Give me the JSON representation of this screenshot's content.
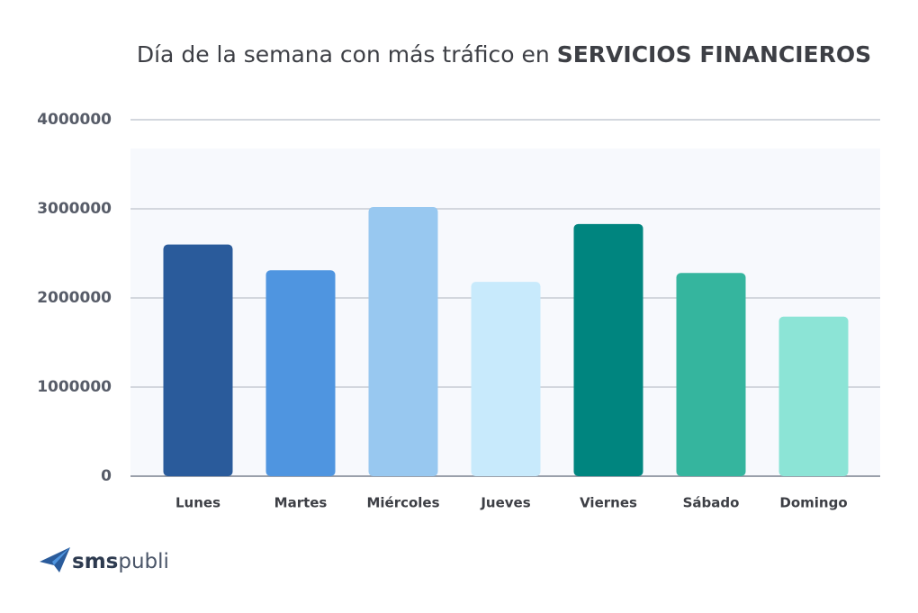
{
  "chart_data": {
    "type": "bar",
    "title": "Día de la semana con más tráfico en",
    "title_emphasis": "SERVICIOS FINANCIEROS",
    "categories": [
      "Lunes",
      "Martes",
      "Miércoles",
      "Jueves",
      "Viernes",
      "Sábado",
      "Domingo"
    ],
    "values": [
      2600000,
      2310000,
      3020000,
      2180000,
      2830000,
      2280000,
      1790000
    ],
    "colors": [
      "#2a5b9b",
      "#4f95e0",
      "#98c8f0",
      "#c8eafc",
      "#00857f",
      "#35b59e",
      "#8ce4d6"
    ],
    "ylim": [
      0,
      4000000
    ],
    "yticks": [
      0,
      1000000,
      2000000,
      3000000,
      4000000
    ],
    "grid": true
  },
  "brand": {
    "bold": "sms",
    "light": "publi"
  }
}
